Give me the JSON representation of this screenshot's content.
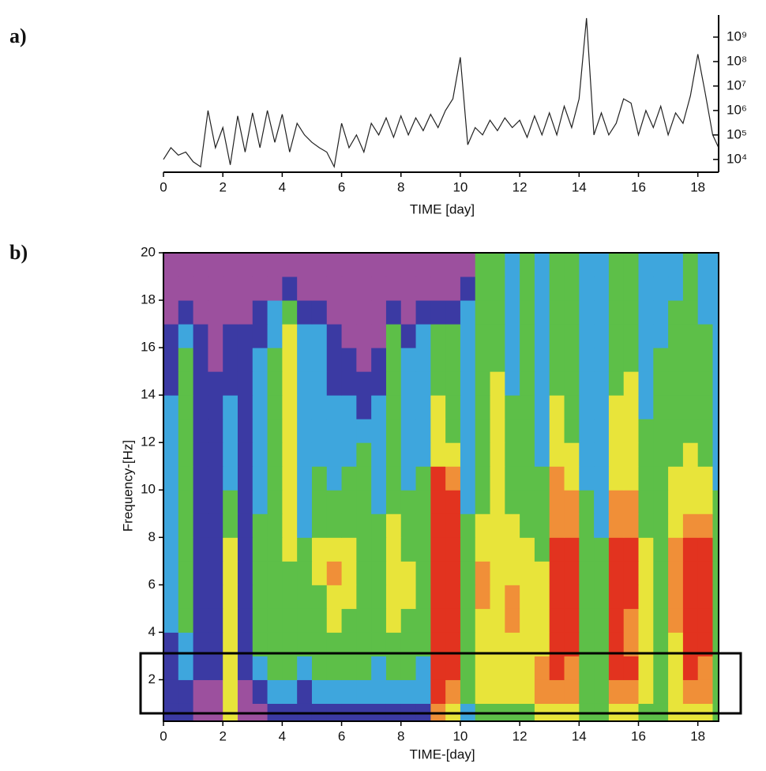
{
  "chart_data": [
    {
      "type": "line",
      "label": "a)",
      "xlabel": "TIME [day]",
      "log_y": true,
      "color": "#222222",
      "x": [
        0,
        0.25,
        0.5,
        0.75,
        1,
        1.25,
        1.5,
        1.75,
        2,
        2.25,
        2.5,
        2.75,
        3,
        3.25,
        3.5,
        3.75,
        4,
        4.25,
        4.5,
        4.75,
        5,
        5.25,
        5.5,
        5.75,
        6,
        6.25,
        6.5,
        6.75,
        7,
        7.25,
        7.5,
        7.75,
        8,
        8.25,
        8.5,
        8.75,
        9,
        9.25,
        9.5,
        9.75,
        10,
        10.25,
        10.5,
        10.75,
        11,
        11.25,
        11.5,
        11.75,
        12,
        12.25,
        12.5,
        12.75,
        13,
        13.25,
        13.5,
        13.75,
        14,
        14.25,
        14.5,
        14.75,
        15,
        15.25,
        15.5,
        15.75,
        16,
        16.25,
        16.5,
        16.75,
        17,
        17.25,
        17.5,
        17.75,
        18,
        18.25,
        18.5,
        18.7
      ],
      "values": [
        10000.0,
        30000.0,
        15000.0,
        20000.0,
        8000.0,
        5000.0,
        1000000.0,
        30000.0,
        200000.0,
        6000.0,
        600000.0,
        20000.0,
        800000.0,
        30000.0,
        1000000.0,
        50000.0,
        700000.0,
        20000.0,
        300000.0,
        100000.0,
        50000.0,
        30000.0,
        20000.0,
        5000.0,
        300000.0,
        30000.0,
        100000.0,
        20000.0,
        300000.0,
        100000.0,
        500000.0,
        80000.0,
        600000.0,
        100000.0,
        500000.0,
        150000.0,
        700000.0,
        200000.0,
        1000000.0,
        3000000.0,
        150000000.0,
        40000.0,
        200000.0,
        100000.0,
        400000.0,
        150000.0,
        500000.0,
        200000.0,
        400000.0,
        80000.0,
        600000.0,
        100000.0,
        800000.0,
        100000.0,
        1500000.0,
        200000.0,
        3000000.0,
        6000000000.0,
        100000.0,
        800000.0,
        100000.0,
        300000.0,
        3000000.0,
        2000000.0,
        100000.0,
        1000000.0,
        200000.0,
        1500000.0,
        100000.0,
        800000.0,
        300000.0,
        4000000.0,
        200000000.0,
        5000000.0,
        100000.0,
        30000.0
      ],
      "xlim": [
        0,
        18.7
      ],
      "xticks": [
        0,
        2,
        4,
        6,
        8,
        10,
        12,
        14,
        16,
        18
      ],
      "ylim": [
        3000,
        8000000000
      ],
      "yticks": [
        {
          "value": 10000,
          "label": "10⁴"
        },
        {
          "value": 100000,
          "label": "10⁵"
        },
        {
          "value": 1000000,
          "label": "10⁶"
        },
        {
          "value": 10000000,
          "label": "10⁷"
        },
        {
          "value": 100000000,
          "label": "10⁸"
        },
        {
          "value": 1000000000,
          "label": "10⁹"
        }
      ]
    },
    {
      "type": "heatmap",
      "label": "b)",
      "xlabel": "TIME-[day]",
      "ylabel": "Frequency-[Hz]",
      "xlim": [
        0,
        18.7
      ],
      "xticks": [
        0,
        2,
        4,
        6,
        8,
        10,
        12,
        14,
        16,
        18
      ],
      "ylim": [
        0.25,
        20
      ],
      "yticks": [
        2,
        4,
        6,
        8,
        10,
        12,
        14,
        16,
        18,
        20
      ],
      "colors": [
        "#9c509e",
        "#3b3aa3",
        "#3ea6dd",
        "#5dbf48",
        "#e8e43a",
        "#f08f38",
        "#e2331f"
      ],
      "x_bins": [
        0,
        0.5,
        1,
        1.5,
        2,
        2.5,
        3,
        3.5,
        4,
        4.5,
        5,
        5.5,
        6,
        6.5,
        7,
        7.5,
        8,
        8.5,
        9,
        9.5,
        10,
        10.5,
        11,
        11.5,
        12,
        12.5,
        13,
        13.5,
        14,
        14.5,
        15,
        15.5,
        16,
        16.5,
        17,
        17.5,
        18,
        18.5,
        19
      ],
      "y_bins": [
        0,
        1,
        2,
        3,
        4,
        5,
        6,
        7,
        8,
        9,
        10,
        11,
        12,
        13,
        14,
        15,
        16,
        17,
        18,
        19,
        20
      ],
      "z": [
        [
          1,
          1,
          0,
          0,
          4,
          0,
          0,
          1,
          1,
          1,
          1,
          1,
          1,
          1,
          1,
          1,
          1,
          1,
          5,
          4,
          2,
          3,
          3,
          3,
          3,
          4,
          4,
          4,
          3,
          3,
          4,
          4,
          3,
          3,
          4,
          4,
          4,
          3
        ],
        [
          1,
          1,
          0,
          0,
          4,
          0,
          1,
          2,
          2,
          1,
          2,
          2,
          2,
          2,
          2,
          2,
          2,
          2,
          6,
          5,
          3,
          4,
          4,
          4,
          4,
          5,
          5,
          5,
          3,
          3,
          5,
          5,
          4,
          3,
          4,
          5,
          5,
          3
        ],
        [
          1,
          2,
          1,
          1,
          4,
          1,
          2,
          3,
          3,
          2,
          3,
          3,
          3,
          3,
          2,
          3,
          3,
          2,
          6,
          6,
          3,
          4,
          4,
          4,
          4,
          5,
          6,
          5,
          3,
          3,
          6,
          6,
          4,
          3,
          4,
          6,
          5,
          3
        ],
        [
          1,
          2,
          1,
          1,
          4,
          1,
          3,
          3,
          3,
          3,
          3,
          3,
          3,
          3,
          3,
          3,
          3,
          3,
          6,
          6,
          3,
          4,
          4,
          4,
          4,
          4,
          6,
          6,
          3,
          3,
          6,
          5,
          4,
          3,
          4,
          6,
          6,
          3
        ],
        [
          2,
          3,
          1,
          1,
          4,
          1,
          3,
          3,
          3,
          3,
          3,
          4,
          3,
          3,
          3,
          4,
          3,
          3,
          6,
          6,
          3,
          4,
          4,
          5,
          4,
          4,
          6,
          6,
          3,
          3,
          6,
          5,
          4,
          3,
          5,
          6,
          6,
          3
        ],
        [
          2,
          3,
          1,
          1,
          4,
          1,
          3,
          3,
          3,
          3,
          3,
          4,
          4,
          3,
          3,
          4,
          4,
          3,
          6,
          6,
          3,
          5,
          4,
          5,
          4,
          4,
          6,
          6,
          3,
          3,
          6,
          6,
          4,
          3,
          5,
          6,
          6,
          3
        ],
        [
          2,
          3,
          1,
          1,
          4,
          1,
          3,
          3,
          3,
          3,
          4,
          5,
          4,
          3,
          3,
          4,
          4,
          3,
          6,
          6,
          3,
          5,
          4,
          4,
          4,
          4,
          6,
          6,
          3,
          3,
          6,
          6,
          4,
          3,
          5,
          6,
          6,
          3
        ],
        [
          2,
          3,
          1,
          1,
          4,
          1,
          3,
          3,
          4,
          3,
          4,
          4,
          4,
          3,
          3,
          4,
          3,
          3,
          6,
          6,
          3,
          4,
          4,
          4,
          4,
          3,
          6,
          6,
          3,
          3,
          6,
          6,
          4,
          3,
          5,
          6,
          6,
          3
        ],
        [
          2,
          3,
          1,
          1,
          3,
          1,
          3,
          3,
          4,
          2,
          3,
          3,
          3,
          3,
          3,
          4,
          3,
          3,
          6,
          6,
          3,
          4,
          4,
          4,
          3,
          3,
          5,
          5,
          3,
          2,
          5,
          5,
          3,
          3,
          4,
          5,
          5,
          3
        ],
        [
          2,
          3,
          1,
          1,
          3,
          1,
          2,
          3,
          4,
          2,
          3,
          3,
          3,
          3,
          2,
          3,
          3,
          3,
          6,
          6,
          2,
          3,
          4,
          3,
          3,
          3,
          5,
          5,
          3,
          2,
          5,
          5,
          3,
          3,
          4,
          4,
          4,
          3
        ],
        [
          2,
          3,
          1,
          1,
          2,
          1,
          2,
          3,
          4,
          2,
          3,
          2,
          3,
          3,
          2,
          3,
          2,
          3,
          6,
          5,
          2,
          3,
          4,
          3,
          3,
          3,
          5,
          4,
          2,
          2,
          4,
          4,
          3,
          3,
          4,
          4,
          4,
          2
        ],
        [
          2,
          3,
          1,
          1,
          2,
          1,
          2,
          3,
          4,
          2,
          2,
          2,
          2,
          3,
          2,
          3,
          2,
          2,
          4,
          4,
          2,
          3,
          4,
          3,
          3,
          2,
          4,
          4,
          2,
          2,
          4,
          4,
          3,
          3,
          3,
          4,
          3,
          2
        ],
        [
          2,
          3,
          1,
          1,
          2,
          1,
          2,
          3,
          4,
          2,
          2,
          2,
          2,
          2,
          2,
          3,
          2,
          2,
          4,
          3,
          2,
          3,
          4,
          3,
          3,
          2,
          4,
          3,
          2,
          2,
          4,
          4,
          3,
          3,
          3,
          3,
          3,
          2
        ],
        [
          2,
          3,
          1,
          1,
          2,
          1,
          2,
          3,
          4,
          2,
          2,
          2,
          2,
          1,
          2,
          3,
          2,
          2,
          4,
          3,
          2,
          3,
          4,
          3,
          3,
          2,
          4,
          3,
          2,
          2,
          4,
          4,
          2,
          3,
          3,
          3,
          3,
          2
        ],
        [
          1,
          3,
          1,
          1,
          1,
          1,
          2,
          3,
          4,
          2,
          2,
          1,
          1,
          1,
          1,
          3,
          2,
          2,
          3,
          3,
          2,
          3,
          4,
          2,
          3,
          2,
          3,
          3,
          2,
          2,
          3,
          4,
          2,
          3,
          3,
          3,
          3,
          2
        ],
        [
          1,
          3,
          1,
          0,
          1,
          1,
          2,
          3,
          4,
          2,
          2,
          1,
          1,
          0,
          1,
          3,
          2,
          2,
          3,
          3,
          2,
          3,
          3,
          2,
          3,
          2,
          3,
          3,
          2,
          2,
          3,
          3,
          2,
          3,
          3,
          3,
          3,
          2
        ],
        [
          1,
          2,
          1,
          0,
          1,
          1,
          1,
          2,
          4,
          2,
          2,
          1,
          0,
          0,
          0,
          3,
          1,
          2,
          3,
          3,
          2,
          3,
          3,
          2,
          3,
          2,
          3,
          3,
          2,
          2,
          3,
          3,
          2,
          2,
          3,
          3,
          3,
          2
        ],
        [
          0,
          1,
          0,
          0,
          0,
          0,
          1,
          2,
          3,
          1,
          1,
          0,
          0,
          0,
          0,
          1,
          0,
          1,
          1,
          1,
          2,
          3,
          3,
          2,
          3,
          2,
          3,
          3,
          2,
          2,
          3,
          3,
          2,
          2,
          3,
          3,
          2,
          2
        ],
        [
          0,
          0,
          0,
          0,
          0,
          0,
          0,
          0,
          1,
          0,
          0,
          0,
          0,
          0,
          0,
          0,
          0,
          0,
          0,
          0,
          1,
          3,
          3,
          2,
          3,
          2,
          3,
          3,
          2,
          2,
          3,
          3,
          2,
          2,
          2,
          3,
          2,
          2
        ],
        [
          0,
          0,
          0,
          0,
          0,
          0,
          0,
          0,
          0,
          0,
          0,
          0,
          0,
          0,
          0,
          0,
          0,
          0,
          0,
          0,
          0,
          3,
          3,
          2,
          3,
          2,
          3,
          3,
          2,
          2,
          3,
          3,
          2,
          2,
          2,
          3,
          2,
          2
        ]
      ]
    }
  ]
}
